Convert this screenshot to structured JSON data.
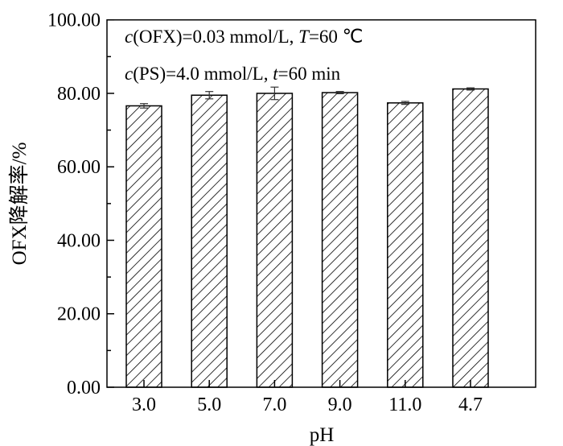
{
  "chart_data": {
    "type": "bar",
    "categories": [
      "3.0",
      "5.0",
      "7.0",
      "9.0",
      "11.0",
      "4.7"
    ],
    "values": [
      76.6,
      79.5,
      80.0,
      80.2,
      77.4,
      81.2
    ],
    "errors": [
      0.6,
      1.0,
      1.7,
      0.3,
      0.4,
      0.3
    ],
    "xlabel": "pH",
    "ylabel": "OFX降解率/%",
    "ylim": [
      0,
      100
    ],
    "yticks": [
      "0.00",
      "20.00",
      "40.00",
      "60.00",
      "80.00",
      "100.00"
    ],
    "annotations": [
      {
        "italic": "c",
        "text": "(OFX)=0.03 mmol/L, ",
        "italic2": "T",
        "text2": "=60 ℃"
      },
      {
        "italic": "c",
        "text": "(PS)=4.0 mmol/L, ",
        "italic2": "t",
        "text2": "=60 min"
      }
    ],
    "fill": "hatched",
    "grid": false
  }
}
